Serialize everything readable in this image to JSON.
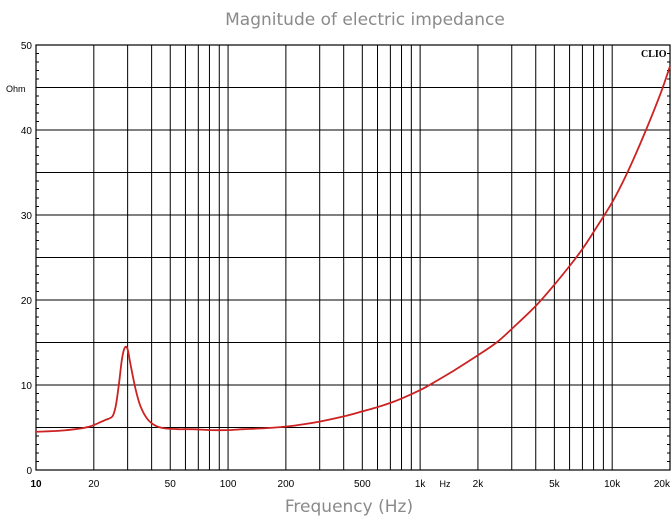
{
  "chart_data": {
    "type": "line",
    "title": "Magnitude of electric impedance",
    "xlabel": "Frequency (Hz)",
    "ylabel": "Ohm",
    "xscale": "log",
    "xlim": [
      10,
      20000
    ],
    "ylim": [
      0,
      50
    ],
    "x_ticks": [
      {
        "value": 10,
        "label": "10"
      },
      {
        "value": 20,
        "label": "20"
      },
      {
        "value": 50,
        "label": "50"
      },
      {
        "value": 100,
        "label": "100"
      },
      {
        "value": 200,
        "label": "200"
      },
      {
        "value": 500,
        "label": "500"
      },
      {
        "value": 1000,
        "label": "1k"
      },
      {
        "value": 2000,
        "label": "2k"
      },
      {
        "value": 5000,
        "label": "5k"
      },
      {
        "value": 10000,
        "label": "10k"
      },
      {
        "value": 20000,
        "label": "20k"
      }
    ],
    "x_unit_label": "Hz",
    "y_ticks": [
      0,
      10,
      20,
      30,
      40,
      50
    ],
    "brand": "CLIO",
    "grid": true,
    "line_color": "#cc2222",
    "series": [
      {
        "x": [
          10,
          13,
          16,
          19,
          21,
          23,
          25,
          26,
          27,
          28,
          29,
          30,
          31,
          33,
          35,
          38,
          42,
          47,
          55,
          65,
          80,
          100,
          120,
          150,
          200,
          250,
          300,
          400,
          500,
          600,
          700,
          800,
          1000,
          1200,
          1500,
          2000,
          2500,
          3000,
          4000,
          5000,
          6000,
          7000,
          8000,
          10000,
          12000,
          15000,
          18000,
          20000
        ],
        "y": [
          4.5,
          4.6,
          4.8,
          5.1,
          5.5,
          5.9,
          6.3,
          7.5,
          10.0,
          13.0,
          14.4,
          14.2,
          12.5,
          9.5,
          7.5,
          6.0,
          5.2,
          4.9,
          4.8,
          4.8,
          4.7,
          4.7,
          4.8,
          4.9,
          5.1,
          5.4,
          5.7,
          6.3,
          6.9,
          7.4,
          7.9,
          8.4,
          9.4,
          10.4,
          11.7,
          13.5,
          15.0,
          16.6,
          19.3,
          21.8,
          24.0,
          26.0,
          28.0,
          31.5,
          35.0,
          40.0,
          44.5,
          47.5
        ]
      }
    ]
  }
}
